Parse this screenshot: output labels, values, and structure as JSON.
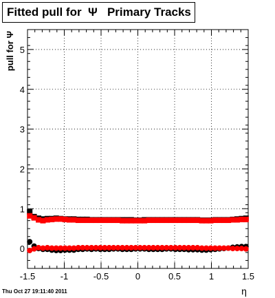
{
  "title": "Fitted pull for  Ψ   Primary Tracks",
  "timestamp": "Thu Oct 27 19:11:40 2011",
  "chart_data": {
    "type": "scatter",
    "title": "Fitted pull for  Ψ   Primary Tracks",
    "xlabel": "η",
    "ylabel": "pull for Ψ",
    "xlim": [
      -1.5,
      1.5
    ],
    "ylim": [
      -0.5,
      5.5
    ],
    "grid": true,
    "xticks": [
      "-1.5",
      "-1",
      "-0.5",
      "0",
      "0.5",
      "1",
      "1.5"
    ],
    "yticks": [
      "0",
      "1",
      "2",
      "3",
      "4",
      "5"
    ],
    "series": [
      {
        "color": "#000000",
        "x": [
          -1.47,
          -1.41,
          -1.35,
          -1.29,
          -1.23,
          -1.17,
          -1.11,
          -1.05,
          -0.99,
          -0.93,
          -0.87,
          -0.81,
          -0.75,
          -0.69,
          -0.63,
          -0.57,
          -0.51,
          -0.45,
          -0.39,
          -0.33,
          -0.27,
          -0.21,
          -0.15,
          -0.09,
          -0.03,
          0.03,
          0.09,
          0.15,
          0.21,
          0.27,
          0.33,
          0.39,
          0.45,
          0.51,
          0.57,
          0.63,
          0.69,
          0.75,
          0.81,
          0.87,
          0.93,
          0.99,
          1.05,
          1.11,
          1.17,
          1.23,
          1.29,
          1.35,
          1.41,
          1.47
        ],
        "values": [
          0.92,
          0.8,
          0.76,
          0.74,
          0.75,
          0.75,
          0.76,
          0.75,
          0.74,
          0.74,
          0.74,
          0.73,
          0.73,
          0.73,
          0.72,
          0.72,
          0.72,
          0.72,
          0.72,
          0.72,
          0.72,
          0.72,
          0.72,
          0.72,
          0.71,
          0.71,
          0.72,
          0.72,
          0.72,
          0.72,
          0.72,
          0.72,
          0.72,
          0.72,
          0.72,
          0.72,
          0.72,
          0.72,
          0.72,
          0.71,
          0.71,
          0.71,
          0.72,
          0.72,
          0.72,
          0.72,
          0.73,
          0.74,
          0.75,
          0.76
        ],
        "values2": [
          0.17,
          0.06,
          0.0,
          -0.02,
          -0.02,
          -0.04,
          -0.05,
          -0.05,
          -0.04,
          -0.04,
          -0.04,
          -0.02,
          -0.02,
          -0.01,
          -0.02,
          -0.01,
          -0.02,
          -0.02,
          -0.02,
          -0.01,
          -0.01,
          -0.02,
          -0.02,
          -0.02,
          -0.01,
          -0.01,
          -0.01,
          -0.02,
          -0.02,
          -0.02,
          -0.02,
          -0.01,
          -0.01,
          -0.02,
          -0.02,
          -0.02,
          -0.03,
          -0.03,
          -0.03,
          -0.04,
          -0.04,
          -0.03,
          -0.02,
          -0.01,
          0.0,
          0.01,
          0.03,
          0.04,
          0.05,
          0.05
        ]
      },
      {
        "color": "#ff0000",
        "x": [
          -1.47,
          -1.41,
          -1.35,
          -1.29,
          -1.23,
          -1.17,
          -1.11,
          -1.05,
          -0.99,
          -0.93,
          -0.87,
          -0.81,
          -0.75,
          -0.69,
          -0.63,
          -0.57,
          -0.51,
          -0.45,
          -0.39,
          -0.33,
          -0.27,
          -0.21,
          -0.15,
          -0.09,
          -0.03,
          0.03,
          0.09,
          0.15,
          0.21,
          0.27,
          0.33,
          0.39,
          0.45,
          0.51,
          0.57,
          0.63,
          0.69,
          0.75,
          0.81,
          0.87,
          0.93,
          0.99,
          1.05,
          1.11,
          1.17,
          1.23,
          1.29,
          1.35,
          1.41,
          1.47
        ],
        "values": [
          0.82,
          0.77,
          0.72,
          0.7,
          0.72,
          0.73,
          0.74,
          0.74,
          0.73,
          0.72,
          0.72,
          0.71,
          0.71,
          0.71,
          0.71,
          0.71,
          0.71,
          0.71,
          0.71,
          0.71,
          0.71,
          0.7,
          0.7,
          0.7,
          0.7,
          0.7,
          0.7,
          0.71,
          0.71,
          0.71,
          0.71,
          0.71,
          0.71,
          0.71,
          0.71,
          0.71,
          0.71,
          0.71,
          0.71,
          0.7,
          0.7,
          0.7,
          0.71,
          0.71,
          0.71,
          0.71,
          0.72,
          0.72,
          0.73,
          0.73
        ],
        "values2": [
          -0.05,
          -0.01,
          0.02,
          0.01,
          0.02,
          0.01,
          0.01,
          0.01,
          0.01,
          0.01,
          0.01,
          0.02,
          0.02,
          0.02,
          0.02,
          0.02,
          0.02,
          0.02,
          0.02,
          0.02,
          0.02,
          0.02,
          0.02,
          0.02,
          0.02,
          0.02,
          0.02,
          0.02,
          0.02,
          0.02,
          0.02,
          0.02,
          0.02,
          0.02,
          0.02,
          0.02,
          0.02,
          0.02,
          0.02,
          0.01,
          0.01,
          0.01,
          0.01,
          0.01,
          0.01,
          0.01,
          0.0,
          0.0,
          0.0,
          -0.01
        ]
      }
    ]
  }
}
